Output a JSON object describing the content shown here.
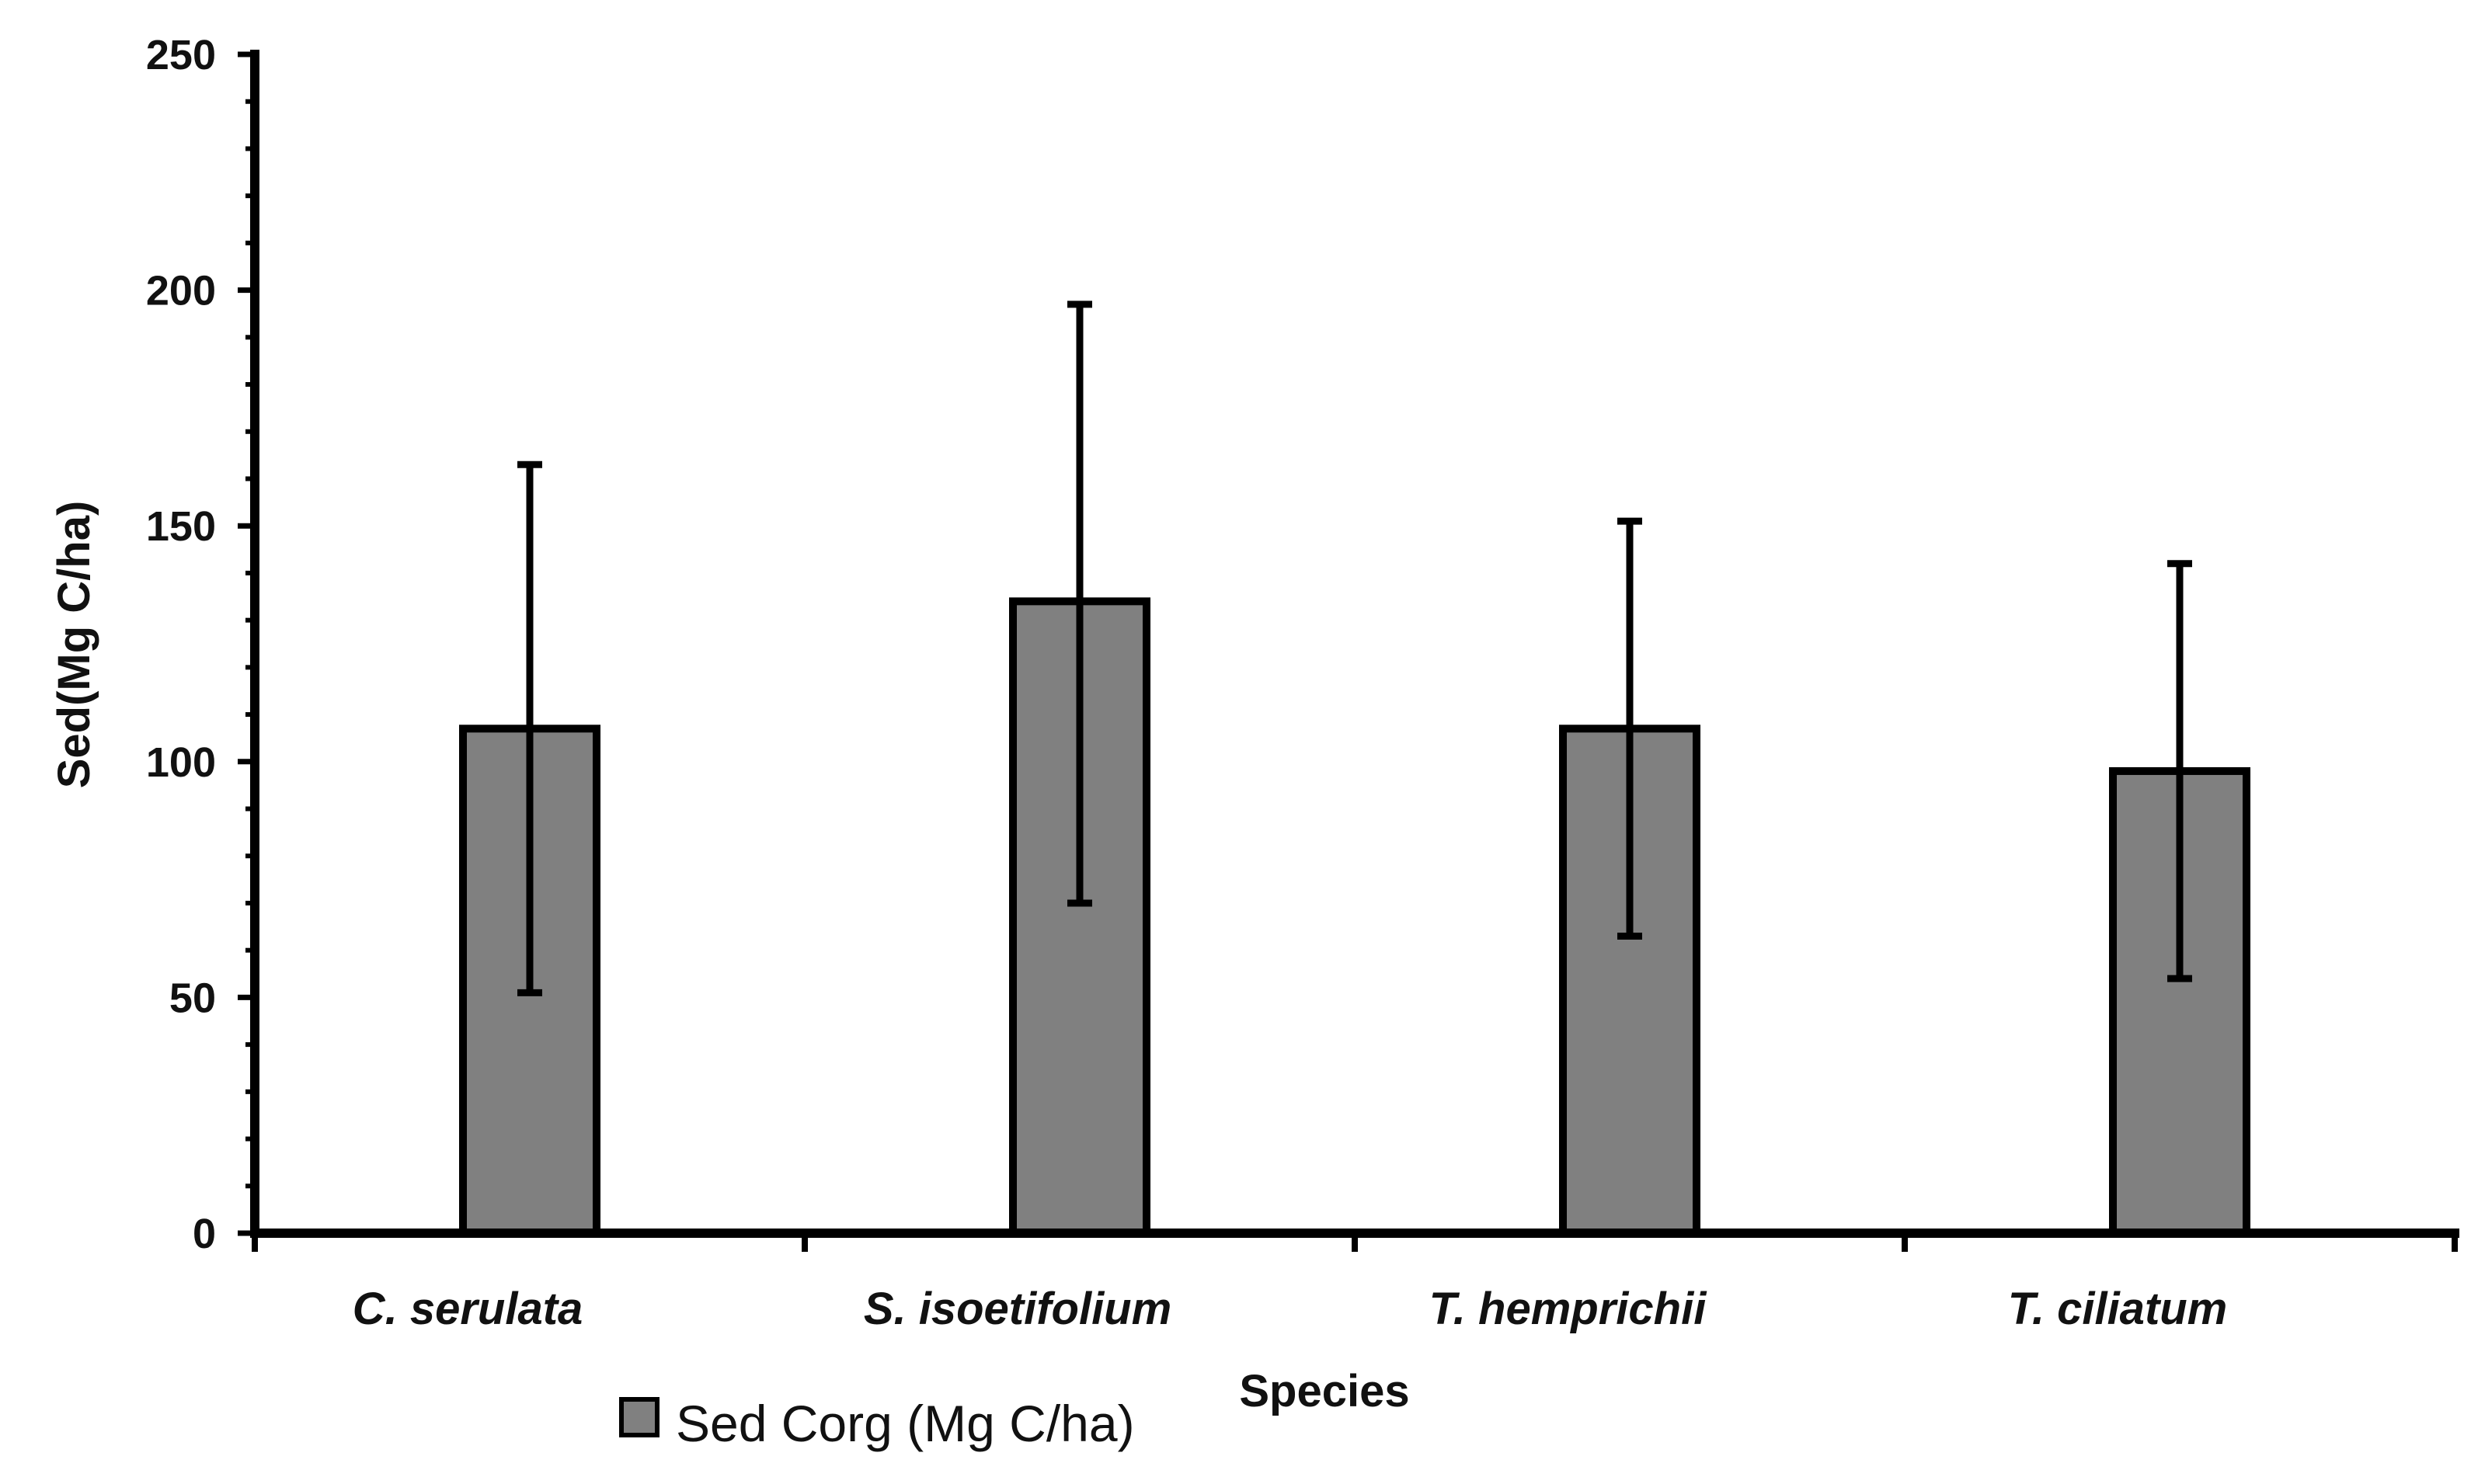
{
  "chart_data": {
    "type": "bar",
    "title": "",
    "xlabel": "Species",
    "ylabel": "Sed(Mg C/ha)",
    "categories": [
      "C. serulata",
      "S. isoetifolium",
      "T. hemprichii",
      "T. ciliatum"
    ],
    "series": [
      {
        "name": "Sed Corg (Mg C/ha)",
        "color": "#808080",
        "values": [
          107,
          134,
          107,
          98
        ],
        "error_upper": [
          163,
          197,
          151,
          142
        ],
        "error_lower": [
          51,
          70,
          63,
          54
        ]
      }
    ],
    "ylim": [
      0,
      250
    ],
    "yticks": [
      0,
      50,
      100,
      150,
      200,
      250
    ],
    "ytick_labels": [
      "0",
      "50",
      "100",
      "150",
      "200",
      "250"
    ],
    "grid": false,
    "legend_position": "bottom-left"
  }
}
